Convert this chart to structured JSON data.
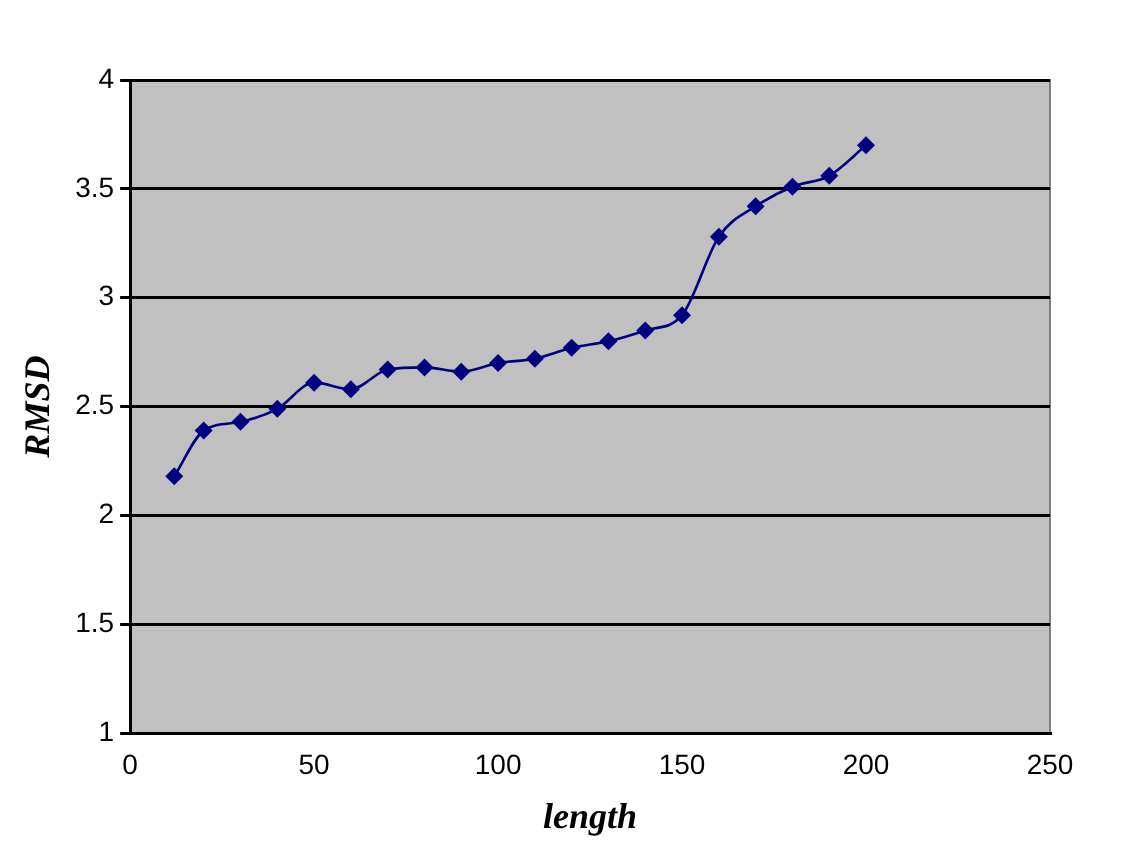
{
  "chart_data": {
    "type": "line",
    "xlabel": "length",
    "ylabel": "RMSD",
    "x": [
      12,
      20,
      30,
      40,
      50,
      60,
      70,
      80,
      90,
      100,
      110,
      120,
      130,
      140,
      150,
      160,
      170,
      180,
      190,
      200
    ],
    "series": [
      {
        "color": "#000080",
        "values": [
          2.18,
          2.39,
          2.43,
          2.49,
          2.61,
          2.58,
          2.67,
          2.68,
          2.66,
          2.7,
          2.72,
          2.77,
          2.8,
          2.85,
          2.92,
          3.28,
          3.42,
          3.51,
          3.56,
          3.7
        ]
      }
    ],
    "xlim": [
      0,
      250
    ],
    "xticks": [
      0,
      50,
      100,
      150,
      200,
      250
    ],
    "ylim": [
      1,
      4
    ],
    "yticks": [
      1,
      1.5,
      2,
      2.5,
      3,
      3.5,
      4
    ],
    "grid": "y",
    "legend": false,
    "marker": "diamond",
    "line_style": "solid"
  }
}
